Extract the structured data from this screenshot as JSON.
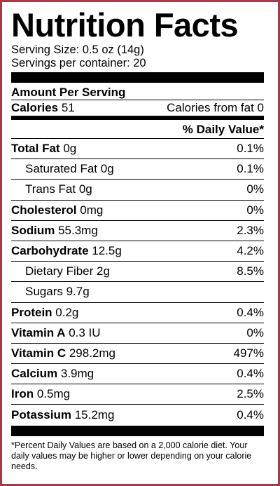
{
  "title": "Nutrition Facts",
  "serving_size": "Serving Size: 0.5 oz (14g)",
  "servings_per_container": "Servings per container: 20",
  "amount_per_serving": "Amount Per Serving",
  "calories_label": "Calories",
  "calories_value": "51",
  "calories_from_fat": "Calories from fat 0",
  "daily_value_header": "% Daily Value*",
  "nutrients": [
    {
      "name": "Total Fat",
      "amount": "0g",
      "dv": "0.1%"
    },
    {
      "name": "Saturated Fat",
      "amount": "0g",
      "dv": "0.1%"
    },
    {
      "name": "Trans Fat",
      "amount": "0g",
      "dv": "0%"
    },
    {
      "name": "Cholesterol",
      "amount": "0mg",
      "dv": "0%"
    },
    {
      "name": "Sodium",
      "amount": "55.3mg",
      "dv": "2.3%"
    },
    {
      "name": "Carbohydrate",
      "amount": "12.5g",
      "dv": "4.2%"
    },
    {
      "name": "Dietary Fiber",
      "amount": "2g",
      "dv": "8.5%"
    },
    {
      "name": "Sugars",
      "amount": "9.7g",
      "dv": ""
    },
    {
      "name": "Protein",
      "amount": "0.2g",
      "dv": "0.4%"
    },
    {
      "name": "Vitamin A",
      "amount": "0.3 IU",
      "dv": "0%"
    },
    {
      "name": "Vitamin C",
      "amount": "298.2mg",
      "dv": "497%"
    },
    {
      "name": "Calcium",
      "amount": "3.9mg",
      "dv": "0.4%"
    },
    {
      "name": "Iron",
      "amount": "0.5mg",
      "dv": "2.5%"
    },
    {
      "name": "Potassium",
      "amount": "15.2mg",
      "dv": "0.4%"
    }
  ],
  "footnote": "*Percent Daily Values are based on a 2,000 calorie diet. Your daily values may be higher or lower depending on your calorie needs.",
  "colors": {
    "border": "#a63a47",
    "text": "#000000",
    "background": "#ffffff"
  }
}
